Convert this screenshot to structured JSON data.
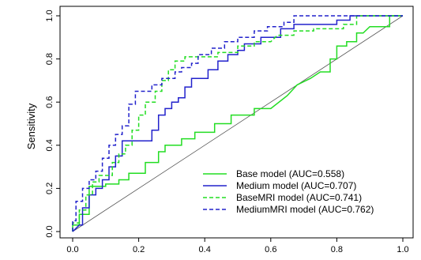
{
  "chart_data": {
    "type": "line",
    "title": "",
    "xlabel": "",
    "ylabel": "Sensitivity",
    "xlim": [
      0,
      1
    ],
    "ylim": [
      0,
      1
    ],
    "x_ticks": [
      "0.0",
      "0.2",
      "0.4",
      "0.6",
      "0.8",
      "1.0"
    ],
    "y_ticks": [
      "0.0",
      "0.2",
      "0.4",
      "0.6",
      "0.8",
      "1.0"
    ],
    "grid": false,
    "legend_position": "bottom-right",
    "reference_line": {
      "from": [
        0,
        0
      ],
      "to": [
        1,
        1
      ],
      "color": "#555555"
    },
    "series": [
      {
        "name": "Base model (AUC=0.558)",
        "color": "#22dd22",
        "dash": "solid",
        "points": [
          [
            0,
            0
          ],
          [
            0,
            0.03
          ],
          [
            0.02,
            0.03
          ],
          [
            0.02,
            0.08
          ],
          [
            0.05,
            0.08
          ],
          [
            0.05,
            0.21
          ],
          [
            0.08,
            0.21
          ],
          [
            0.1,
            0.21
          ],
          [
            0.1,
            0.22
          ],
          [
            0.14,
            0.22
          ],
          [
            0.14,
            0.24
          ],
          [
            0.17,
            0.24
          ],
          [
            0.17,
            0.27
          ],
          [
            0.2,
            0.27
          ],
          [
            0.22,
            0.27
          ],
          [
            0.22,
            0.32
          ],
          [
            0.26,
            0.32
          ],
          [
            0.26,
            0.37
          ],
          [
            0.28,
            0.37
          ],
          [
            0.28,
            0.4
          ],
          [
            0.33,
            0.4
          ],
          [
            0.33,
            0.43
          ],
          [
            0.37,
            0.43
          ],
          [
            0.37,
            0.46
          ],
          [
            0.43,
            0.46
          ],
          [
            0.43,
            0.5
          ],
          [
            0.48,
            0.5
          ],
          [
            0.48,
            0.54
          ],
          [
            0.55,
            0.54
          ],
          [
            0.55,
            0.57
          ],
          [
            0.6,
            0.57
          ],
          [
            0.65,
            0.63
          ],
          [
            0.68,
            0.68
          ],
          [
            0.72,
            0.71
          ],
          [
            0.75,
            0.74
          ],
          [
            0.78,
            0.74
          ],
          [
            0.78,
            0.8
          ],
          [
            0.8,
            0.8
          ],
          [
            0.8,
            0.86
          ],
          [
            0.83,
            0.86
          ],
          [
            0.83,
            0.88
          ],
          [
            0.86,
            0.88
          ],
          [
            0.86,
            0.92
          ],
          [
            0.88,
            0.92
          ],
          [
            0.9,
            0.95
          ],
          [
            0.93,
            0.95
          ],
          [
            0.96,
            0.95
          ],
          [
            0.96,
            1.0
          ],
          [
            1.0,
            1.0
          ]
        ]
      },
      {
        "name": "Medium model (AUC=0.707)",
        "color": "#2222cc",
        "dash": "solid",
        "points": [
          [
            0,
            0
          ],
          [
            0.02,
            0.03
          ],
          [
            0.03,
            0.03
          ],
          [
            0.03,
            0.11
          ],
          [
            0.05,
            0.11
          ],
          [
            0.05,
            0.17
          ],
          [
            0.07,
            0.17
          ],
          [
            0.07,
            0.2
          ],
          [
            0.09,
            0.2
          ],
          [
            0.09,
            0.24
          ],
          [
            0.11,
            0.24
          ],
          [
            0.11,
            0.3
          ],
          [
            0.13,
            0.3
          ],
          [
            0.13,
            0.35
          ],
          [
            0.15,
            0.35
          ],
          [
            0.15,
            0.42
          ],
          [
            0.24,
            0.42
          ],
          [
            0.24,
            0.47
          ],
          [
            0.26,
            0.47
          ],
          [
            0.26,
            0.54
          ],
          [
            0.28,
            0.54
          ],
          [
            0.28,
            0.57
          ],
          [
            0.3,
            0.57
          ],
          [
            0.3,
            0.6
          ],
          [
            0.32,
            0.6
          ],
          [
            0.32,
            0.62
          ],
          [
            0.34,
            0.62
          ],
          [
            0.34,
            0.67
          ],
          [
            0.36,
            0.67
          ],
          [
            0.36,
            0.71
          ],
          [
            0.41,
            0.71
          ],
          [
            0.41,
            0.75
          ],
          [
            0.44,
            0.75
          ],
          [
            0.44,
            0.79
          ],
          [
            0.47,
            0.79
          ],
          [
            0.47,
            0.82
          ],
          [
            0.5,
            0.82
          ],
          [
            0.5,
            0.84
          ],
          [
            0.52,
            0.84
          ],
          [
            0.52,
            0.87
          ],
          [
            0.57,
            0.87
          ],
          [
            0.57,
            0.9
          ],
          [
            0.63,
            0.9
          ],
          [
            0.63,
            0.94
          ],
          [
            0.67,
            0.94
          ],
          [
            0.67,
            0.96
          ],
          [
            0.7,
            0.96
          ],
          [
            0.8,
            0.96
          ],
          [
            0.8,
            0.98
          ],
          [
            0.84,
            0.98
          ],
          [
            0.84,
            1.0
          ],
          [
            1.0,
            1.0
          ]
        ]
      },
      {
        "name": "BaseMRI model (AUC=0.741)",
        "color": "#22dd22",
        "dash": "dashed",
        "points": [
          [
            0,
            0
          ],
          [
            0,
            0.04
          ],
          [
            0.02,
            0.04
          ],
          [
            0.02,
            0.1
          ],
          [
            0.04,
            0.1
          ],
          [
            0.04,
            0.17
          ],
          [
            0.06,
            0.17
          ],
          [
            0.06,
            0.23
          ],
          [
            0.08,
            0.23
          ],
          [
            0.08,
            0.26
          ],
          [
            0.12,
            0.26
          ],
          [
            0.12,
            0.32
          ],
          [
            0.14,
            0.32
          ],
          [
            0.14,
            0.36
          ],
          [
            0.16,
            0.36
          ],
          [
            0.16,
            0.4
          ],
          [
            0.18,
            0.4
          ],
          [
            0.18,
            0.47
          ],
          [
            0.2,
            0.47
          ],
          [
            0.2,
            0.54
          ],
          [
            0.22,
            0.54
          ],
          [
            0.22,
            0.6
          ],
          [
            0.25,
            0.6
          ],
          [
            0.25,
            0.65
          ],
          [
            0.27,
            0.65
          ],
          [
            0.27,
            0.7
          ],
          [
            0.29,
            0.7
          ],
          [
            0.29,
            0.75
          ],
          [
            0.31,
            0.75
          ],
          [
            0.31,
            0.79
          ],
          [
            0.34,
            0.79
          ],
          [
            0.34,
            0.81
          ],
          [
            0.44,
            0.81
          ],
          [
            0.44,
            0.83
          ],
          [
            0.5,
            0.83
          ],
          [
            0.5,
            0.86
          ],
          [
            0.55,
            0.86
          ],
          [
            0.55,
            0.88
          ],
          [
            0.6,
            0.88
          ],
          [
            0.62,
            0.91
          ],
          [
            0.67,
            0.91
          ],
          [
            0.67,
            0.93
          ],
          [
            0.73,
            0.93
          ],
          [
            0.73,
            0.94
          ],
          [
            0.78,
            0.94
          ],
          [
            0.82,
            0.94
          ],
          [
            0.82,
            0.96
          ],
          [
            0.86,
            0.96
          ],
          [
            0.86,
            1.0
          ],
          [
            1.0,
            1.0
          ]
        ]
      },
      {
        "name": "MediumMRI model (AUC=0.762)",
        "color": "#2222cc",
        "dash": "dashed",
        "points": [
          [
            0,
            0
          ],
          [
            0,
            0.05
          ],
          [
            0.01,
            0.05
          ],
          [
            0.01,
            0.14
          ],
          [
            0.03,
            0.14
          ],
          [
            0.03,
            0.2
          ],
          [
            0.05,
            0.2
          ],
          [
            0.05,
            0.24
          ],
          [
            0.07,
            0.24
          ],
          [
            0.07,
            0.28
          ],
          [
            0.09,
            0.28
          ],
          [
            0.09,
            0.34
          ],
          [
            0.11,
            0.34
          ],
          [
            0.11,
            0.4
          ],
          [
            0.13,
            0.4
          ],
          [
            0.13,
            0.45
          ],
          [
            0.15,
            0.45
          ],
          [
            0.15,
            0.49
          ],
          [
            0.17,
            0.49
          ],
          [
            0.17,
            0.59
          ],
          [
            0.19,
            0.59
          ],
          [
            0.19,
            0.65
          ],
          [
            0.22,
            0.65
          ],
          [
            0.24,
            0.65
          ],
          [
            0.24,
            0.68
          ],
          [
            0.27,
            0.68
          ],
          [
            0.27,
            0.71
          ],
          [
            0.31,
            0.71
          ],
          [
            0.31,
            0.74
          ],
          [
            0.33,
            0.74
          ],
          [
            0.33,
            0.76
          ],
          [
            0.36,
            0.76
          ],
          [
            0.36,
            0.78
          ],
          [
            0.38,
            0.78
          ],
          [
            0.38,
            0.82
          ],
          [
            0.42,
            0.82
          ],
          [
            0.42,
            0.85
          ],
          [
            0.46,
            0.85
          ],
          [
            0.46,
            0.88
          ],
          [
            0.5,
            0.88
          ],
          [
            0.5,
            0.9
          ],
          [
            0.55,
            0.9
          ],
          [
            0.55,
            0.93
          ],
          [
            0.59,
            0.93
          ],
          [
            0.59,
            0.95
          ],
          [
            0.64,
            0.95
          ],
          [
            0.64,
            0.97
          ],
          [
            0.67,
            0.97
          ],
          [
            0.67,
            1.0
          ],
          [
            1.0,
            1.0
          ]
        ]
      }
    ]
  }
}
